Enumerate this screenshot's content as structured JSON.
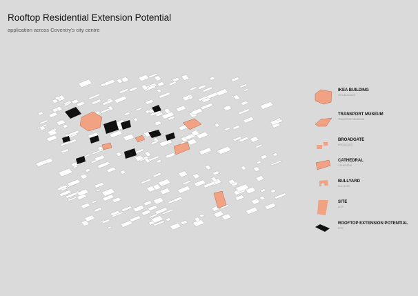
{
  "title": "Rooftop Residential Extension Potential",
  "subtitle": "application across Coventry's city centre",
  "colors": {
    "background": "#dadada",
    "highlight": "#f0a283",
    "rooftop": "#111111",
    "building": "#ffffff"
  },
  "legend": [
    {
      "label": "IKEA BUILDING",
      "sub": "IKEA BUILDING"
    },
    {
      "label": "TRANSPORT MUSEUM",
      "sub": "TRANSPORT MUSEUM"
    },
    {
      "label": "BROADGATE",
      "sub": "BROADGATE"
    },
    {
      "label": "CATHEDRAL",
      "sub": "CATHEDRAL"
    },
    {
      "label": "BULLYARD",
      "sub": "BULLYARD"
    },
    {
      "label": "SITE",
      "sub": "SITE"
    },
    {
      "label": "ROOFTOP EXTENSION POTENTIAL",
      "sub": "SITE"
    }
  ]
}
